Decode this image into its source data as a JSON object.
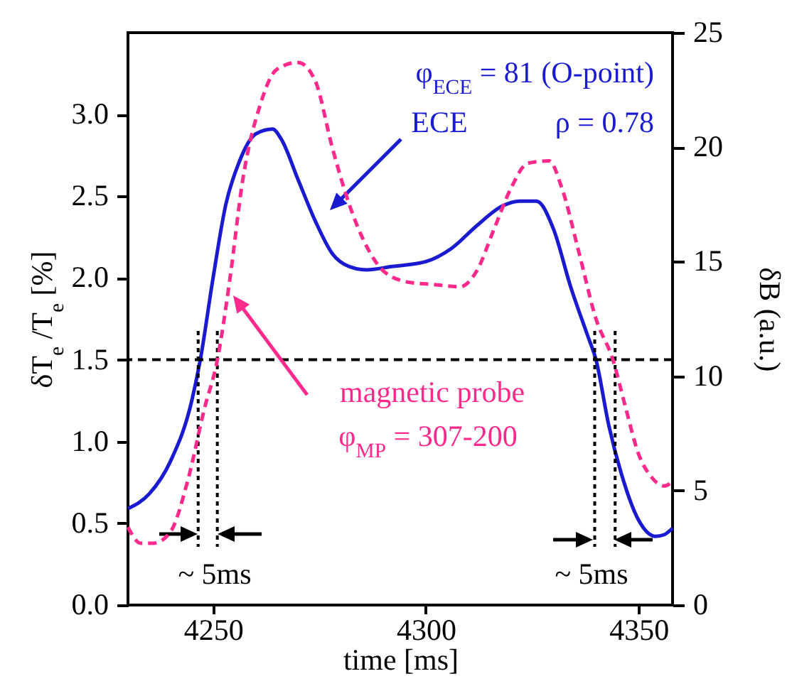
{
  "chart_data": {
    "type": "line",
    "xlabel": "time [ms]",
    "ylabel": "δT$_{e}$ /T$_{e}$ [%]",
    "y2label": "δB (a.u.)",
    "series": [
      {
        "name": "ECE",
        "color": "#1a1ad0",
        "line_style": "solid",
        "x": [
          4230,
          4235,
          4240,
          4245,
          4247,
          4250,
          4253,
          4256,
          4260,
          4264,
          4266,
          4270,
          4274,
          4278,
          4282,
          4286,
          4292,
          4300,
          4306,
          4312,
          4318,
          4322,
          4326,
          4330,
          4334,
          4338,
          4340,
          4343,
          4346,
          4350,
          4354,
          4356,
          4358
        ],
        "values": [
          0.59,
          0.68,
          0.88,
          1.25,
          1.5,
          2.0,
          2.45,
          2.7,
          2.88,
          2.91,
          2.85,
          2.6,
          2.35,
          2.15,
          2.07,
          2.05,
          2.07,
          2.1,
          2.18,
          2.32,
          2.44,
          2.47,
          2.47,
          2.3,
          1.95,
          1.65,
          1.5,
          1.1,
          0.8,
          0.52,
          0.42,
          0.43,
          0.47
        ]
      },
      {
        "name": "magnetic probe",
        "color": "#ff2a8c",
        "line_style": "dashed",
        "axis": "y2",
        "x": [
          4230,
          4233,
          4236,
          4240,
          4244,
          4248,
          4251,
          4254,
          4257,
          4261,
          4265,
          4270,
          4274,
          4278,
          4282,
          4286,
          4290,
          4296,
          4302,
          4308,
          4312,
          4316,
          4320,
          4324,
          4329,
          4332,
          4336,
          4340,
          4344,
          4347,
          4350,
          4353,
          4356,
          4358
        ],
        "values": [
          3.4,
          2.7,
          2.7,
          3.2,
          5.4,
          8.6,
          10.7,
          14.3,
          18.6,
          21.8,
          23.4,
          23.7,
          22.9,
          20,
          17.5,
          15.7,
          14.6,
          14.1,
          14.0,
          13.9,
          14.6,
          16.4,
          18.2,
          19.3,
          19.4,
          18.2,
          15.4,
          12.5,
          10.7,
          8.6,
          6.6,
          5.6,
          5.2,
          5.4
        ]
      }
    ],
    "xlim": [
      4230,
      4358
    ],
    "xticks": [
      4250,
      4300,
      4350
    ],
    "ylim": [
      0,
      3.5
    ],
    "yticks": [
      {
        "value": 0,
        "label": "0.0"
      },
      0.5,
      {
        "value": 1,
        "label": "1.0"
      },
      1.5,
      {
        "value": 2,
        "label": "2.0"
      },
      2.5,
      {
        "value": 3,
        "label": "3.0"
      }
    ],
    "y2lim": [
      0,
      25
    ],
    "y2ticks": [
      0,
      5,
      10,
      15,
      20,
      25
    ],
    "ref_lines": [
      {
        "axis": "y",
        "value": 1.5,
        "color": "#000000",
        "line_style": "dashed"
      },
      {
        "axis": "x",
        "value": 4246.5,
        "color": "#000000",
        "line_style": "dotted"
      },
      {
        "axis": "x",
        "value": 4251,
        "color": "#000000",
        "line_style": "dotted"
      },
      {
        "axis": "x",
        "value": 4339.7,
        "color": "#000000",
        "line_style": "dotted"
      },
      {
        "axis": "x",
        "value": 4344.5,
        "color": "#000000",
        "line_style": "dotted"
      }
    ],
    "annotations": [
      "φ$_{ECE}$ = 81 (O-point)",
      "ρ = 0.78",
      "φ$_{MP}$ = 307-200",
      "~ 5ms",
      "~ 5ms"
    ],
    "grid": false,
    "legend": false,
    "marker": "none"
  }
}
